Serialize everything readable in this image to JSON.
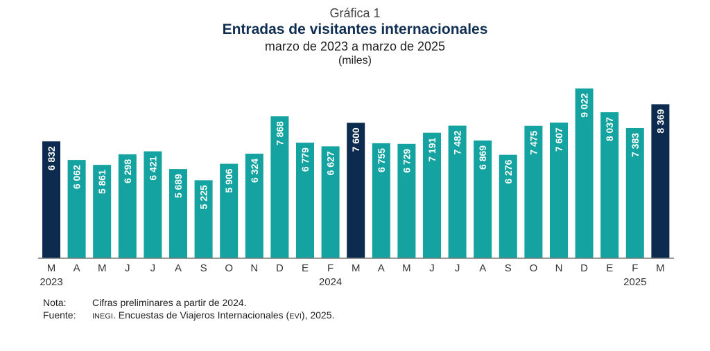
{
  "header": {
    "graf_label": "Gráfica 1",
    "title": "Entradas de visitantes internacionales",
    "subtitle": "marzo de 2023 a marzo de 2025",
    "units": "(miles)"
  },
  "chart_data": {
    "type": "bar",
    "title": "Entradas de visitantes internacionales",
    "subtitle": "marzo de 2023 a marzo de 2025",
    "units": "(miles)",
    "categories": [
      "M",
      "A",
      "M",
      "J",
      "J",
      "A",
      "S",
      "O",
      "N",
      "D",
      "E",
      "F",
      "M",
      "A",
      "M",
      "J",
      "J",
      "A",
      "S",
      "O",
      "N",
      "D",
      "E",
      "F",
      "M"
    ],
    "years": [
      {
        "label": "2023",
        "index": 0
      },
      {
        "label": "2024",
        "index": 11
      },
      {
        "label": "2025",
        "index": 23
      }
    ],
    "values": [
      6832,
      6062,
      5861,
      6298,
      6421,
      5689,
      5225,
      5906,
      6324,
      7868,
      6779,
      6627,
      7600,
      6755,
      6729,
      7191,
      7482,
      6869,
      6276,
      7475,
      7607,
      9022,
      8037,
      7383,
      8369
    ],
    "value_labels": [
      "6 832",
      "6 062",
      "5 861",
      "6 298",
      "6 421",
      "5 689",
      "5 225",
      "5 906",
      "6 324",
      "7 868",
      "6 779",
      "6 627",
      "7 600",
      "6 755",
      "6 729",
      "7 191",
      "7 482",
      "6 869",
      "6 276",
      "7 475",
      "7 607",
      "9 022",
      "8 037",
      "7 383",
      "8 369"
    ],
    "highlight": [
      0,
      12,
      24
    ],
    "colors": {
      "teal": "#14a3a0",
      "highlight": "#0d2a4f",
      "axis": "#777777"
    },
    "ylim": [
      2000,
      9300
    ],
    "grid": false,
    "legend": "none"
  },
  "notes": {
    "note_label": "Nota:",
    "note_text": "Cifras preliminares a partir de 2024.",
    "source_label": "Fuente:",
    "source_org": "INEGI",
    "source_text_1": ". Encuestas de Viajeros Internacionales (",
    "source_abbr": "EVI",
    "source_text_2": "), 2025."
  }
}
